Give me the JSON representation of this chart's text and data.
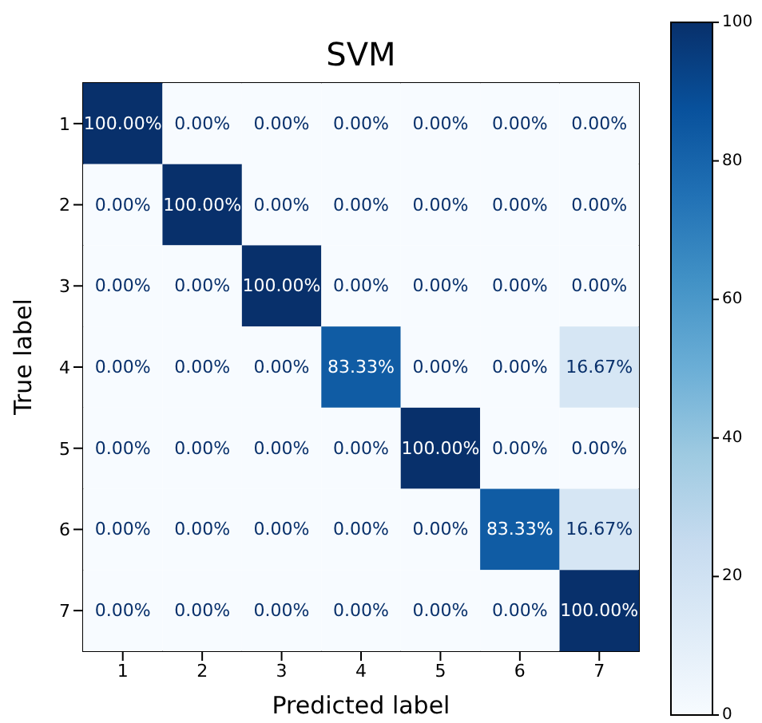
{
  "chart_data": {
    "type": "heatmap",
    "title": "SVM",
    "xlabel": "Predicted label",
    "ylabel": "True label",
    "categories": [
      "1",
      "2",
      "3",
      "4",
      "5",
      "6",
      "7"
    ],
    "y_categories": [
      "1",
      "2",
      "3",
      "4",
      "5",
      "6",
      "7"
    ],
    "cells": [
      [
        100,
        0,
        0,
        0,
        0,
        0,
        0
      ],
      [
        0,
        100,
        0,
        0,
        0,
        0,
        0
      ],
      [
        0,
        0,
        100,
        0,
        0,
        0,
        0
      ],
      [
        0,
        0,
        0,
        83.33,
        0,
        0,
        16.67
      ],
      [
        0,
        0,
        0,
        0,
        100,
        0,
        0
      ],
      [
        0,
        0,
        0,
        0,
        0,
        83.33,
        16.67
      ],
      [
        0,
        0,
        0,
        0,
        0,
        0,
        100
      ]
    ],
    "cell_labels": [
      [
        "100.00%",
        "0.00%",
        "0.00%",
        "0.00%",
        "0.00%",
        "0.00%",
        "0.00%"
      ],
      [
        "0.00%",
        "100.00%",
        "0.00%",
        "0.00%",
        "0.00%",
        "0.00%",
        "0.00%"
      ],
      [
        "0.00%",
        "0.00%",
        "100.00%",
        "0.00%",
        "0.00%",
        "0.00%",
        "0.00%"
      ],
      [
        "0.00%",
        "0.00%",
        "0.00%",
        "83.33%",
        "0.00%",
        "0.00%",
        "16.67%"
      ],
      [
        "0.00%",
        "0.00%",
        "0.00%",
        "0.00%",
        "100.00%",
        "0.00%",
        "0.00%"
      ],
      [
        "0.00%",
        "0.00%",
        "0.00%",
        "0.00%",
        "0.00%",
        "83.33%",
        "16.67%"
      ],
      [
        "0.00%",
        "0.00%",
        "0.00%",
        "0.00%",
        "0.00%",
        "0.00%",
        "100.00%"
      ]
    ],
    "clim": [
      0,
      100
    ],
    "cticks": [
      0,
      20,
      40,
      60,
      80,
      100
    ],
    "grid": false
  }
}
